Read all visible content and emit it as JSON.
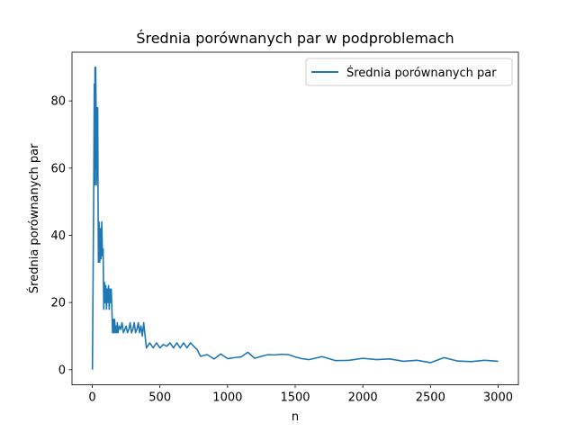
{
  "chart_data": {
    "type": "line",
    "title": "Średnia porównanych par w podproblemach",
    "xlabel": "n",
    "ylabel": "Średnia porównanych par",
    "xlim": [
      -150,
      3150
    ],
    "ylim": [
      -4.5,
      94.5
    ],
    "xticks": [
      0,
      500,
      1000,
      1500,
      2000,
      2500,
      3000
    ],
    "yticks": [
      0,
      20,
      40,
      60,
      80
    ],
    "grid": false,
    "legend_position": "upper right",
    "colors": {
      "line": "#1f77b4"
    },
    "series": [
      {
        "name": "Średnia porównanych par",
        "x": [
          1,
          10,
          15,
          18,
          20,
          22,
          25,
          28,
          30,
          33,
          35,
          38,
          40,
          45,
          50,
          55,
          60,
          65,
          70,
          75,
          80,
          85,
          90,
          95,
          100,
          105,
          110,
          115,
          120,
          125,
          130,
          135,
          140,
          145,
          150,
          155,
          160,
          165,
          170,
          175,
          180,
          185,
          190,
          200,
          210,
          220,
          230,
          240,
          250,
          260,
          270,
          280,
          290,
          300,
          310,
          320,
          330,
          340,
          350,
          360,
          370,
          380,
          400,
          425,
          450,
          475,
          500,
          525,
          550,
          575,
          600,
          625,
          650,
          675,
          700,
          725,
          750,
          775,
          800,
          850,
          900,
          950,
          1000,
          1050,
          1100,
          1150,
          1200,
          1250,
          1300,
          1350,
          1400,
          1450,
          1500,
          1550,
          1600,
          1700,
          1800,
          1900,
          2000,
          2100,
          2200,
          2300,
          2400,
          2500,
          2600,
          2700,
          2800,
          2900,
          3000
        ],
        "values": [
          0,
          50,
          85,
          55,
          90,
          60,
          90,
          78,
          55,
          60,
          78,
          58,
          78,
          32,
          44,
          32,
          42,
          33,
          44,
          34,
          36,
          18,
          26,
          20,
          25,
          18,
          24,
          20,
          25,
          18,
          24,
          20,
          24,
          18,
          11,
          15,
          11,
          15,
          11,
          13,
          11,
          14,
          11,
          13,
          12,
          14,
          11,
          12,
          13,
          11,
          12,
          14,
          11,
          12,
          14,
          11,
          12,
          14,
          11,
          13,
          10,
          14,
          6.5,
          8,
          6.5,
          8,
          6.5,
          7.5,
          7,
          8,
          6.5,
          8,
          6.5,
          8,
          6.5,
          8,
          7,
          6,
          4,
          4.5,
          3.2,
          4.7,
          3.3,
          3.6,
          3.8,
          5.2,
          3.4,
          4,
          4.5,
          4.4,
          4.6,
          4.5,
          3.8,
          3.3,
          3,
          3.9,
          2.7,
          2.8,
          3.4,
          3,
          3.2,
          2.5,
          2.8,
          2.1,
          3.6,
          2.6,
          2.4,
          2.8,
          2.5
        ]
      }
    ]
  }
}
